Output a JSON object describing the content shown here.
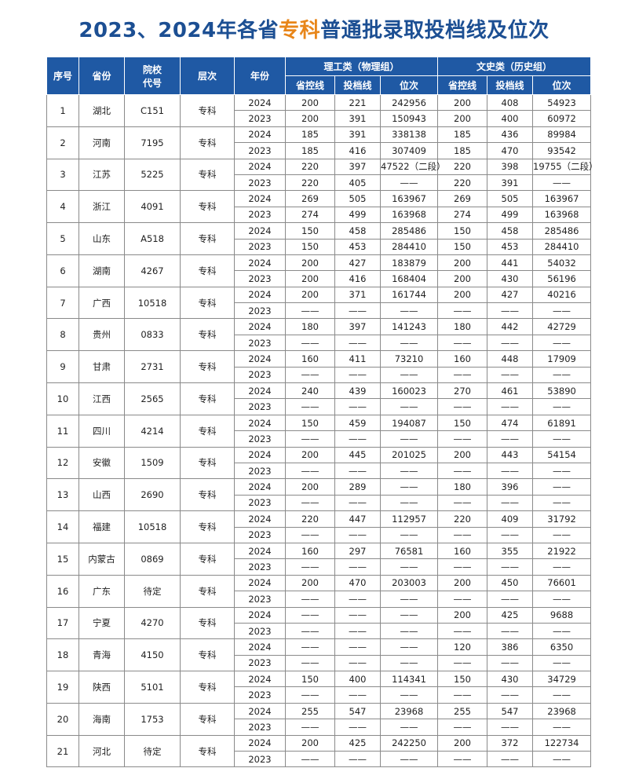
{
  "title": {
    "prefix": "2023、2024年各省",
    "highlight": "专科",
    "suffix": "普通批录取投档线及位次"
  },
  "colors": {
    "title": "#1c4f93",
    "highlight": "#e8861a",
    "header_bg": "#1f59a4"
  },
  "header": {
    "seq": "序号",
    "province": "省份",
    "code_line1": "院校",
    "code_line2": "代号",
    "level": "层次",
    "year": "年份",
    "group1": "理工类（物理组）",
    "group2": "文史类（历史组）",
    "sub": [
      "省控线",
      "投档线",
      "位次",
      "省控线",
      "投档线",
      "位次"
    ]
  },
  "rows": [
    {
      "seq": "1",
      "province": "湖北",
      "code": "C151",
      "level": "专科",
      "years": [
        {
          "year": "2024",
          "v": [
            "200",
            "221",
            "242956",
            "200",
            "408",
            "54923"
          ]
        },
        {
          "year": "2023",
          "v": [
            "200",
            "391",
            "150943",
            "200",
            "400",
            "60972"
          ]
        }
      ]
    },
    {
      "seq": "2",
      "province": "河南",
      "code": "7195",
      "level": "专科",
      "years": [
        {
          "year": "2024",
          "v": [
            "185",
            "391",
            "338138",
            "185",
            "436",
            "89984"
          ]
        },
        {
          "year": "2023",
          "v": [
            "185",
            "416",
            "307409",
            "185",
            "470",
            "93542"
          ]
        }
      ]
    },
    {
      "seq": "3",
      "province": "江苏",
      "code": "5225",
      "level": "专科",
      "years": [
        {
          "year": "2024",
          "v": [
            "220",
            "397",
            "47522（二段）",
            "220",
            "398",
            "19755（二段）"
          ]
        },
        {
          "year": "2023",
          "v": [
            "220",
            "405",
            "——",
            "220",
            "391",
            "——"
          ]
        }
      ]
    },
    {
      "seq": "4",
      "province": "浙江",
      "code": "4091",
      "level": "专科",
      "years": [
        {
          "year": "2024",
          "v": [
            "269",
            "505",
            "163967",
            "269",
            "505",
            "163967"
          ]
        },
        {
          "year": "2023",
          "v": [
            "274",
            "499",
            "163968",
            "274",
            "499",
            "163968"
          ]
        }
      ]
    },
    {
      "seq": "5",
      "province": "山东",
      "code": "A518",
      "level": "专科",
      "years": [
        {
          "year": "2024",
          "v": [
            "150",
            "458",
            "285486",
            "150",
            "458",
            "285486"
          ]
        },
        {
          "year": "2023",
          "v": [
            "150",
            "453",
            "284410",
            "150",
            "453",
            "284410"
          ]
        }
      ]
    },
    {
      "seq": "6",
      "province": "湖南",
      "code": "4267",
      "level": "专科",
      "years": [
        {
          "year": "2024",
          "v": [
            "200",
            "427",
            "183879",
            "200",
            "441",
            "54032"
          ]
        },
        {
          "year": "2023",
          "v": [
            "200",
            "416",
            "168404",
            "200",
            "430",
            "56196"
          ]
        }
      ]
    },
    {
      "seq": "7",
      "province": "广西",
      "code": "10518",
      "level": "专科",
      "years": [
        {
          "year": "2024",
          "v": [
            "200",
            "371",
            "161744",
            "200",
            "427",
            "40216"
          ]
        },
        {
          "year": "2023",
          "v": [
            "——",
            "——",
            "——",
            "——",
            "——",
            "——"
          ]
        }
      ]
    },
    {
      "seq": "8",
      "province": "贵州",
      "code": "0833",
      "level": "专科",
      "years": [
        {
          "year": "2024",
          "v": [
            "180",
            "397",
            "141243",
            "180",
            "442",
            "42729"
          ]
        },
        {
          "year": "2023",
          "v": [
            "——",
            "——",
            "——",
            "——",
            "——",
            "——"
          ]
        }
      ]
    },
    {
      "seq": "9",
      "province": "甘肃",
      "code": "2731",
      "level": "专科",
      "years": [
        {
          "year": "2024",
          "v": [
            "160",
            "411",
            "73210",
            "160",
            "448",
            "17909"
          ]
        },
        {
          "year": "2023",
          "v": [
            "——",
            "——",
            "——",
            "——",
            "——",
            "——"
          ]
        }
      ]
    },
    {
      "seq": "10",
      "province": "江西",
      "code": "2565",
      "level": "专科",
      "years": [
        {
          "year": "2024",
          "v": [
            "240",
            "439",
            "160023",
            "270",
            "461",
            "53890"
          ]
        },
        {
          "year": "2023",
          "v": [
            "——",
            "——",
            "——",
            "——",
            "——",
            "——"
          ]
        }
      ]
    },
    {
      "seq": "11",
      "province": "四川",
      "code": "4214",
      "level": "专科",
      "years": [
        {
          "year": "2024",
          "v": [
            "150",
            "459",
            "194087",
            "150",
            "474",
            "61891"
          ]
        },
        {
          "year": "2023",
          "v": [
            "——",
            "——",
            "——",
            "——",
            "——",
            "——"
          ]
        }
      ]
    },
    {
      "seq": "12",
      "province": "安徽",
      "code": "1509",
      "level": "专科",
      "years": [
        {
          "year": "2024",
          "v": [
            "200",
            "445",
            "201025",
            "200",
            "443",
            "54154"
          ]
        },
        {
          "year": "2023",
          "v": [
            "——",
            "——",
            "——",
            "——",
            "——",
            "——"
          ]
        }
      ]
    },
    {
      "seq": "13",
      "province": "山西",
      "code": "2690",
      "level": "专科",
      "years": [
        {
          "year": "2024",
          "v": [
            "200",
            "289",
            "——",
            "180",
            "396",
            "——"
          ]
        },
        {
          "year": "2023",
          "v": [
            "——",
            "——",
            "——",
            "——",
            "——",
            "——"
          ]
        }
      ]
    },
    {
      "seq": "14",
      "province": "福建",
      "code": "10518",
      "level": "专科",
      "years": [
        {
          "year": "2024",
          "v": [
            "220",
            "447",
            "112957",
            "220",
            "409",
            "31792"
          ]
        },
        {
          "year": "2023",
          "v": [
            "——",
            "——",
            "——",
            "——",
            "——",
            "——"
          ]
        }
      ]
    },
    {
      "seq": "15",
      "province": "内蒙古",
      "code": "0869",
      "level": "专科",
      "years": [
        {
          "year": "2024",
          "v": [
            "160",
            "297",
            "76581",
            "160",
            "355",
            "21922"
          ]
        },
        {
          "year": "2023",
          "v": [
            "——",
            "——",
            "——",
            "——",
            "——",
            "——"
          ]
        }
      ]
    },
    {
      "seq": "16",
      "province": "广东",
      "code": "待定",
      "level": "专科",
      "years": [
        {
          "year": "2024",
          "v": [
            "200",
            "470",
            "203003",
            "200",
            "450",
            "76601"
          ]
        },
        {
          "year": "2023",
          "v": [
            "——",
            "——",
            "——",
            "——",
            "——",
            "——"
          ]
        }
      ]
    },
    {
      "seq": "17",
      "province": "宁夏",
      "code": "4270",
      "level": "专科",
      "years": [
        {
          "year": "2024",
          "v": [
            "——",
            "——",
            "——",
            "200",
            "425",
            "9688"
          ]
        },
        {
          "year": "2023",
          "v": [
            "——",
            "——",
            "——",
            "——",
            "——",
            "——"
          ]
        }
      ]
    },
    {
      "seq": "18",
      "province": "青海",
      "code": "4150",
      "level": "专科",
      "years": [
        {
          "year": "2024",
          "v": [
            "——",
            "——",
            "——",
            "120",
            "386",
            "6350"
          ]
        },
        {
          "year": "2023",
          "v": [
            "——",
            "——",
            "——",
            "——",
            "——",
            "——"
          ]
        }
      ]
    },
    {
      "seq": "19",
      "province": "陕西",
      "code": "5101",
      "level": "专科",
      "years": [
        {
          "year": "2024",
          "v": [
            "150",
            "400",
            "114341",
            "150",
            "430",
            "34729"
          ]
        },
        {
          "year": "2023",
          "v": [
            "——",
            "——",
            "——",
            "——",
            "——",
            "——"
          ]
        }
      ]
    },
    {
      "seq": "20",
      "province": "海南",
      "code": "1753",
      "level": "专科",
      "years": [
        {
          "year": "2024",
          "v": [
            "255",
            "547",
            "23968",
            "255",
            "547",
            "23968"
          ]
        },
        {
          "year": "2023",
          "v": [
            "——",
            "——",
            "——",
            "——",
            "——",
            "——"
          ]
        }
      ]
    },
    {
      "seq": "21",
      "province": "河北",
      "code": "待定",
      "level": "专科",
      "years": [
        {
          "year": "2024",
          "v": [
            "200",
            "425",
            "242250",
            "200",
            "372",
            "122734"
          ]
        },
        {
          "year": "2023",
          "v": [
            "——",
            "——",
            "——",
            "——",
            "——",
            "——"
          ]
        }
      ]
    }
  ]
}
